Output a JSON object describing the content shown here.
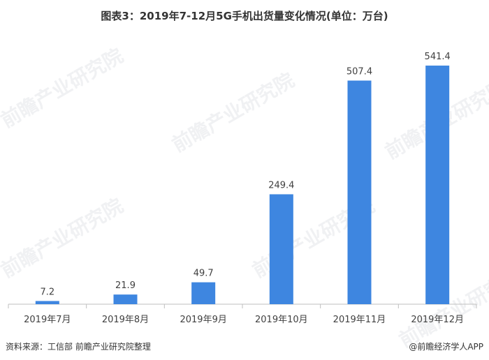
{
  "title": "图表3：2019年7-12月5G手机出货量变化情况(单位：万台)",
  "footer": {
    "source": "资料来源：工信部 前瞻产业研究院整理",
    "credit": "@前瞻经济学人APP"
  },
  "watermark": "前瞻产业研究院",
  "colors": {
    "bar": "#3e86e0",
    "axis": "#bfbfbf",
    "label": "#404040"
  },
  "chart_data": {
    "type": "bar",
    "categories": [
      "2019年7月",
      "2019年8月",
      "2019年9月",
      "2019年10月",
      "2019年11月",
      "2019年12月"
    ],
    "values": [
      7.2,
      21.9,
      49.7,
      249.4,
      507.4,
      541.4
    ],
    "value_labels": [
      "7.2",
      "21.9",
      "49.7",
      "249.4",
      "507.4",
      "541.4"
    ],
    "title": "图表3：2019年7-12月5G手机出货量变化情况(单位：万台)",
    "xlabel": "",
    "ylabel": "",
    "ylim": [
      0,
      600
    ],
    "grid": false,
    "legend": "none"
  }
}
